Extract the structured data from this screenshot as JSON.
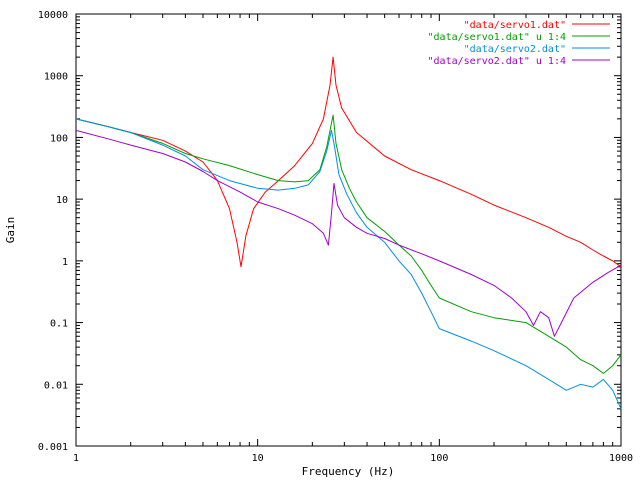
{
  "chart_data": {
    "type": "line",
    "title": "",
    "xlabel": "Frequency (Hz)",
    "ylabel": "Gain",
    "xscale": "log",
    "yscale": "log",
    "xlim": [
      1,
      1000
    ],
    "ylim": [
      0.001,
      10000
    ],
    "x_ticks": [
      "1",
      "10",
      "100",
      "1000"
    ],
    "y_ticks": [
      "0.001",
      "0.01",
      "0.1",
      "1",
      "10",
      "100",
      "1000",
      "10000"
    ],
    "grid": false,
    "legend_position": "top-right",
    "series": [
      {
        "name": "\"data/servo1.dat\"",
        "color": "#ff0000",
        "points": [
          [
            1,
            200
          ],
          [
            1.5,
            150
          ],
          [
            2,
            120
          ],
          [
            3,
            90
          ],
          [
            4,
            60
          ],
          [
            5,
            40
          ],
          [
            6,
            20
          ],
          [
            7,
            7
          ],
          [
            7.7,
            2
          ],
          [
            8.1,
            0.8
          ],
          [
            8.6,
            2.5
          ],
          [
            9.5,
            7
          ],
          [
            11,
            13
          ],
          [
            13,
            20
          ],
          [
            16,
            35
          ],
          [
            20,
            80
          ],
          [
            23,
            200
          ],
          [
            25,
            700
          ],
          [
            26,
            2000
          ],
          [
            27,
            700
          ],
          [
            29,
            300
          ],
          [
            35,
            120
          ],
          [
            50,
            50
          ],
          [
            70,
            30
          ],
          [
            100,
            20
          ],
          [
            150,
            12
          ],
          [
            200,
            8
          ],
          [
            300,
            5
          ],
          [
            400,
            3.5
          ],
          [
            500,
            2.5
          ],
          [
            600,
            2
          ],
          [
            700,
            1.5
          ],
          [
            800,
            1.2
          ],
          [
            900,
            1
          ],
          [
            1000,
            0.8
          ]
        ]
      },
      {
        "name": "\"data/servo1.dat\" u 1:4",
        "color": "#00a000",
        "points": [
          [
            1,
            200
          ],
          [
            1.5,
            150
          ],
          [
            2,
            120
          ],
          [
            3,
            80
          ],
          [
            4,
            55
          ],
          [
            5,
            45
          ],
          [
            7,
            35
          ],
          [
            10,
            25
          ],
          [
            13,
            20
          ],
          [
            16,
            19
          ],
          [
            19,
            20
          ],
          [
            22,
            30
          ],
          [
            24,
            70
          ],
          [
            26,
            230
          ],
          [
            27,
            80
          ],
          [
            29,
            30
          ],
          [
            32,
            15
          ],
          [
            35,
            9
          ],
          [
            40,
            5
          ],
          [
            50,
            3
          ],
          [
            60,
            1.8
          ],
          [
            70,
            1.2
          ],
          [
            80,
            0.7
          ],
          [
            90,
            0.4
          ],
          [
            100,
            0.25
          ],
          [
            150,
            0.15
          ],
          [
            200,
            0.12
          ],
          [
            300,
            0.1
          ],
          [
            400,
            0.06
          ],
          [
            500,
            0.04
          ],
          [
            600,
            0.025
          ],
          [
            700,
            0.02
          ],
          [
            800,
            0.015
          ],
          [
            900,
            0.02
          ],
          [
            1000,
            0.03
          ]
        ]
      },
      {
        "name": "\"data/servo2.dat\"",
        "color": "#0090e0",
        "points": [
          [
            1,
            200
          ],
          [
            1.5,
            150
          ],
          [
            2,
            120
          ],
          [
            3,
            75
          ],
          [
            4,
            50
          ],
          [
            5,
            30
          ],
          [
            7,
            20
          ],
          [
            10,
            15
          ],
          [
            13,
            14
          ],
          [
            16,
            15
          ],
          [
            19,
            17
          ],
          [
            22,
            28
          ],
          [
            24,
            60
          ],
          [
            25.5,
            130
          ],
          [
            26.5,
            70
          ],
          [
            28,
            25
          ],
          [
            31,
            12
          ],
          [
            35,
            6
          ],
          [
            40,
            3.5
          ],
          [
            50,
            2
          ],
          [
            60,
            1
          ],
          [
            70,
            0.6
          ],
          [
            80,
            0.3
          ],
          [
            90,
            0.15
          ],
          [
            100,
            0.08
          ],
          [
            150,
            0.05
          ],
          [
            200,
            0.035
          ],
          [
            300,
            0.02
          ],
          [
            400,
            0.012
          ],
          [
            500,
            0.008
          ],
          [
            600,
            0.01
          ],
          [
            700,
            0.009
          ],
          [
            800,
            0.012
          ],
          [
            900,
            0.008
          ],
          [
            1000,
            0.004
          ]
        ]
      },
      {
        "name": "\"data/servo2.dat\" u 1:4",
        "color": "#a000d0",
        "points": [
          [
            1,
            130
          ],
          [
            1.5,
            95
          ],
          [
            2,
            75
          ],
          [
            3,
            55
          ],
          [
            4,
            40
          ],
          [
            5,
            28
          ],
          [
            6,
            20
          ],
          [
            8,
            13
          ],
          [
            10,
            9
          ],
          [
            13,
            7
          ],
          [
            16,
            5.5
          ],
          [
            20,
            4
          ],
          [
            23,
            2.8
          ],
          [
            24.5,
            1.8
          ],
          [
            25.5,
            6
          ],
          [
            26.3,
            18
          ],
          [
            27.5,
            8
          ],
          [
            30,
            5
          ],
          [
            35,
            3.5
          ],
          [
            40,
            2.8
          ],
          [
            50,
            2.3
          ],
          [
            60,
            1.8
          ],
          [
            80,
            1.3
          ],
          [
            100,
            1
          ],
          [
            150,
            0.6
          ],
          [
            200,
            0.4
          ],
          [
            250,
            0.25
          ],
          [
            300,
            0.15
          ],
          [
            330,
            0.09
          ],
          [
            360,
            0.15
          ],
          [
            400,
            0.12
          ],
          [
            430,
            0.06
          ],
          [
            470,
            0.1
          ],
          [
            550,
            0.25
          ],
          [
            700,
            0.45
          ],
          [
            850,
            0.65
          ],
          [
            1000,
            0.85
          ]
        ]
      }
    ]
  }
}
